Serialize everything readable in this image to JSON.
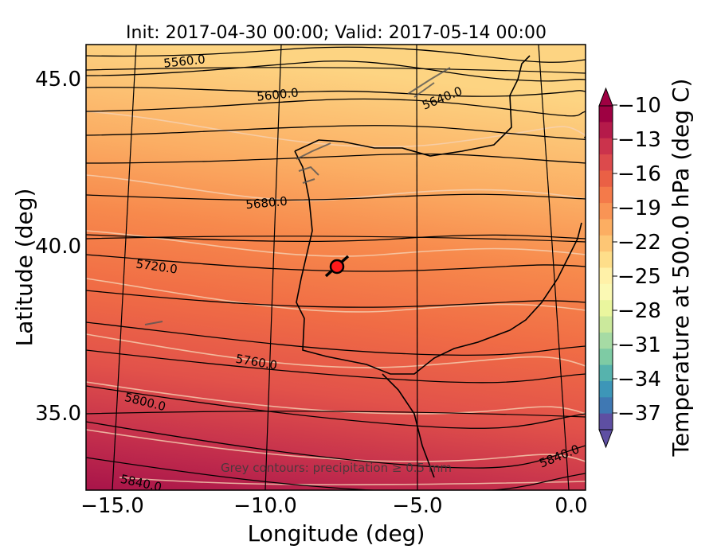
{
  "title": "Init: 2017-04-30 00:00; Valid: 2017-05-14 00:00",
  "x_axis": {
    "label": "Longitude (deg)",
    "ticks": [
      {
        "value": -15.0,
        "label": "−15.0"
      },
      {
        "value": -10.0,
        "label": "−10.0"
      },
      {
        "value": -5.0,
        "label": "−5.0"
      },
      {
        "value": 0.0,
        "label": "0.0"
      }
    ],
    "range": [
      -16.0,
      0.1
    ]
  },
  "y_axis": {
    "label": "Latitude (deg)",
    "ticks": [
      {
        "value": 45.0,
        "label": "45.0"
      },
      {
        "value": 40.0,
        "label": "40.0"
      },
      {
        "value": 35.0,
        "label": "35.0"
      }
    ],
    "range": [
      32.6,
      46.0
    ]
  },
  "colorbar": {
    "label": "Temperature at 500.0 hPa (deg C)",
    "tick_labels": [
      "−10",
      "−13",
      "−16",
      "−19",
      "−22",
      "−25",
      "−28",
      "−31",
      "−34",
      "−37"
    ],
    "range": [
      -38,
      -9
    ],
    "colors_top_to_bottom": [
      "#9e0142",
      "#b51a4a",
      "#cb334c",
      "#dc4a4c",
      "#ea6045",
      "#f47a4a",
      "#f99455",
      "#fcae62",
      "#fdc675",
      "#fede8a",
      "#fff1a8",
      "#fbf9b4",
      "#eaf69e",
      "#cbe99c",
      "#a6dba4",
      "#7ecba4",
      "#56b3ad",
      "#3d96b8",
      "#3f78b3",
      "#5e4fa2"
    ]
  },
  "contour_labels": [
    {
      "text": "5560.0"
    },
    {
      "text": "5600.0"
    },
    {
      "text": "5640.0"
    },
    {
      "text": "5680.0"
    },
    {
      "text": "5720.0"
    },
    {
      "text": "5760.0"
    },
    {
      "text": "5800.0"
    },
    {
      "text": "5840.0"
    },
    {
      "text": "5840.0"
    }
  ],
  "note": "Grey contours: precipitation ≥ 0.5 mm",
  "marker": {
    "lon": -7.7,
    "lat": 39.3,
    "color": "#ff1a1a"
  }
}
